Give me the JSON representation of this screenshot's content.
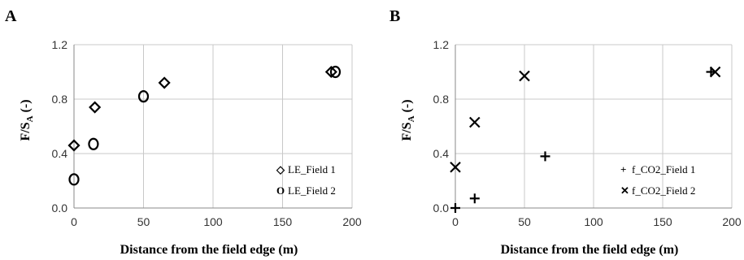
{
  "chart_data": [
    {
      "type": "scatter",
      "panel_label": "A",
      "xlabel": "Distance from the field edge (m)",
      "ylabel_main": "F/S",
      "ylabel_sub": "A",
      "ylabel_tail": " (-)",
      "xlim": [
        0,
        200
      ],
      "ylim": [
        0.0,
        1.2
      ],
      "xticks": [
        0,
        50,
        100,
        150,
        200
      ],
      "xtick_labels": [
        "0",
        "50",
        "100",
        "150",
        "200"
      ],
      "yticks": [
        0.0,
        0.4,
        0.8,
        1.2
      ],
      "ytick_labels": [
        "0.0",
        "0.4",
        "0.8",
        "1.2"
      ],
      "grid": true,
      "legend_position": "bottom-right",
      "series": [
        {
          "name": "LE_Field 1",
          "marker": "diamond",
          "legend_marker": "◇",
          "points": [
            {
              "x": 0,
              "y": 0.46
            },
            {
              "x": 15,
              "y": 0.74
            },
            {
              "x": 65,
              "y": 0.92
            },
            {
              "x": 185,
              "y": 1.0
            }
          ]
        },
        {
          "name": "LE_Field 2",
          "marker": "circle",
          "legend_marker": "O",
          "points": [
            {
              "x": 0,
              "y": 0.21
            },
            {
              "x": 14,
              "y": 0.47
            },
            {
              "x": 50,
              "y": 0.82
            },
            {
              "x": 188,
              "y": 1.0
            }
          ]
        }
      ]
    },
    {
      "type": "scatter",
      "panel_label": "B",
      "xlabel": "Distance from the field edge (m)",
      "ylabel_main": "F/S",
      "ylabel_sub": "A",
      "ylabel_tail": " (-)",
      "xlim": [
        0,
        200
      ],
      "ylim": [
        0.0,
        1.2
      ],
      "xticks": [
        0,
        50,
        100,
        150,
        200
      ],
      "xtick_labels": [
        "0",
        "50",
        "100",
        "150",
        "200"
      ],
      "yticks": [
        0.0,
        0.4,
        0.8,
        1.2
      ],
      "ytick_labels": [
        "0.0",
        "0.4",
        "0.8",
        "1.2"
      ],
      "grid": true,
      "legend_position": "bottom-right",
      "series": [
        {
          "name": "f_CO2_Field 1",
          "marker": "plus",
          "legend_marker": "+",
          "points": [
            {
              "x": 0,
              "y": 0.0
            },
            {
              "x": 14,
              "y": 0.07
            },
            {
              "x": 65,
              "y": 0.38
            },
            {
              "x": 185,
              "y": 1.0
            }
          ]
        },
        {
          "name": "f_CO2_Field 2",
          "marker": "x",
          "legend_marker": "✕",
          "points": [
            {
              "x": 0,
              "y": 0.3
            },
            {
              "x": 14,
              "y": 0.63
            },
            {
              "x": 50,
              "y": 0.97
            },
            {
              "x": 188,
              "y": 1.0
            }
          ]
        }
      ]
    }
  ]
}
